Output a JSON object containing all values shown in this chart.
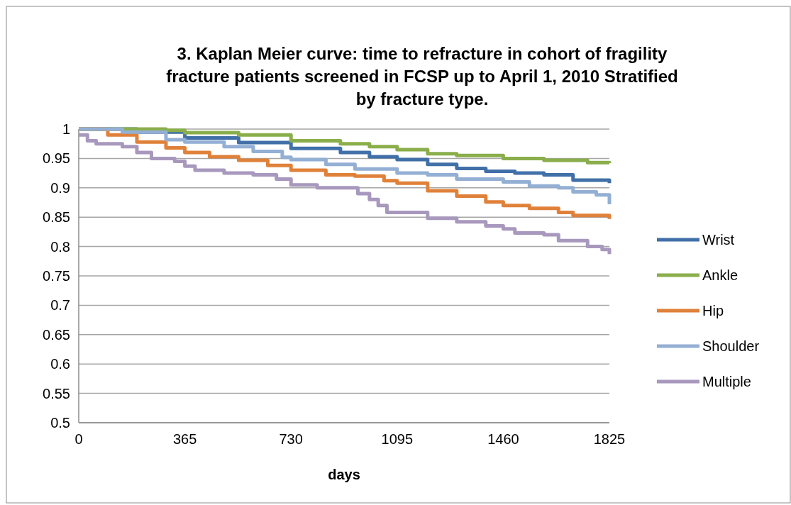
{
  "chart_data": {
    "type": "step",
    "title": "3. Kaplan Meier curve: time to refracture in cohort of fragility fracture patients screened in FCSP up to April 1, 2010 Stratified by fracture type.",
    "xlabel": "days",
    "xlim": [
      0,
      1825
    ],
    "xticks": [
      0,
      365,
      730,
      1095,
      1460,
      1825
    ],
    "ylim": [
      0.5,
      1
    ],
    "yticks": [
      0.5,
      0.55,
      0.6,
      0.65,
      0.7,
      0.75,
      0.8,
      0.85,
      0.9,
      0.95,
      1
    ],
    "grid": "y",
    "legend": "right",
    "series": [
      {
        "name": "Wrist",
        "color": "#4170a8",
        "x": [
          0,
          200,
          365,
          550,
          730,
          900,
          1000,
          1095,
          1200,
          1300,
          1400,
          1500,
          1600,
          1700,
          1825
        ],
        "values": [
          1,
          0.995,
          0.985,
          0.977,
          0.967,
          0.96,
          0.953,
          0.948,
          0.94,
          0.933,
          0.928,
          0.925,
          0.922,
          0.913,
          0.908
        ]
      },
      {
        "name": "Ankle",
        "color": "#8aae4b",
        "x": [
          0,
          300,
          365,
          550,
          730,
          900,
          1000,
          1095,
          1200,
          1300,
          1460,
          1600,
          1750,
          1825
        ],
        "values": [
          1,
          0.998,
          0.994,
          0.99,
          0.98,
          0.975,
          0.97,
          0.965,
          0.958,
          0.955,
          0.95,
          0.947,
          0.943,
          0.942
        ]
      },
      {
        "name": "Hip",
        "color": "#e0813a",
        "x": [
          0,
          100,
          200,
          300,
          365,
          450,
          550,
          650,
          730,
          850,
          950,
          1050,
          1095,
          1200,
          1300,
          1400,
          1460,
          1550,
          1650,
          1700,
          1825
        ],
        "values": [
          1,
          0.99,
          0.978,
          0.968,
          0.96,
          0.953,
          0.947,
          0.938,
          0.93,
          0.922,
          0.92,
          0.912,
          0.908,
          0.895,
          0.886,
          0.876,
          0.87,
          0.865,
          0.858,
          0.853,
          0.847
        ]
      },
      {
        "name": "Shoulder",
        "color": "#93afd4",
        "x": [
          0,
          150,
          300,
          365,
          500,
          600,
          700,
          730,
          850,
          950,
          1095,
          1200,
          1300,
          1460,
          1550,
          1650,
          1700,
          1780,
          1825
        ],
        "values": [
          1,
          0.995,
          0.982,
          0.978,
          0.97,
          0.962,
          0.952,
          0.948,
          0.94,
          0.932,
          0.925,
          0.922,
          0.915,
          0.91,
          0.903,
          0.9,
          0.893,
          0.888,
          0.872
        ]
      },
      {
        "name": "Multiple",
        "color": "#a898bd",
        "x": [
          0,
          30,
          60,
          150,
          200,
          250,
          330,
          365,
          400,
          500,
          600,
          680,
          730,
          820,
          930,
          960,
          1000,
          1030,
          1060,
          1200,
          1300,
          1400,
          1460,
          1500,
          1600,
          1650,
          1750,
          1800,
          1825
        ],
        "values": [
          0.99,
          0.98,
          0.975,
          0.97,
          0.96,
          0.95,
          0.945,
          0.937,
          0.93,
          0.925,
          0.922,
          0.915,
          0.905,
          0.9,
          0.9,
          0.89,
          0.88,
          0.87,
          0.858,
          0.848,
          0.842,
          0.835,
          0.83,
          0.823,
          0.82,
          0.81,
          0.8,
          0.795,
          0.787
        ]
      }
    ]
  }
}
